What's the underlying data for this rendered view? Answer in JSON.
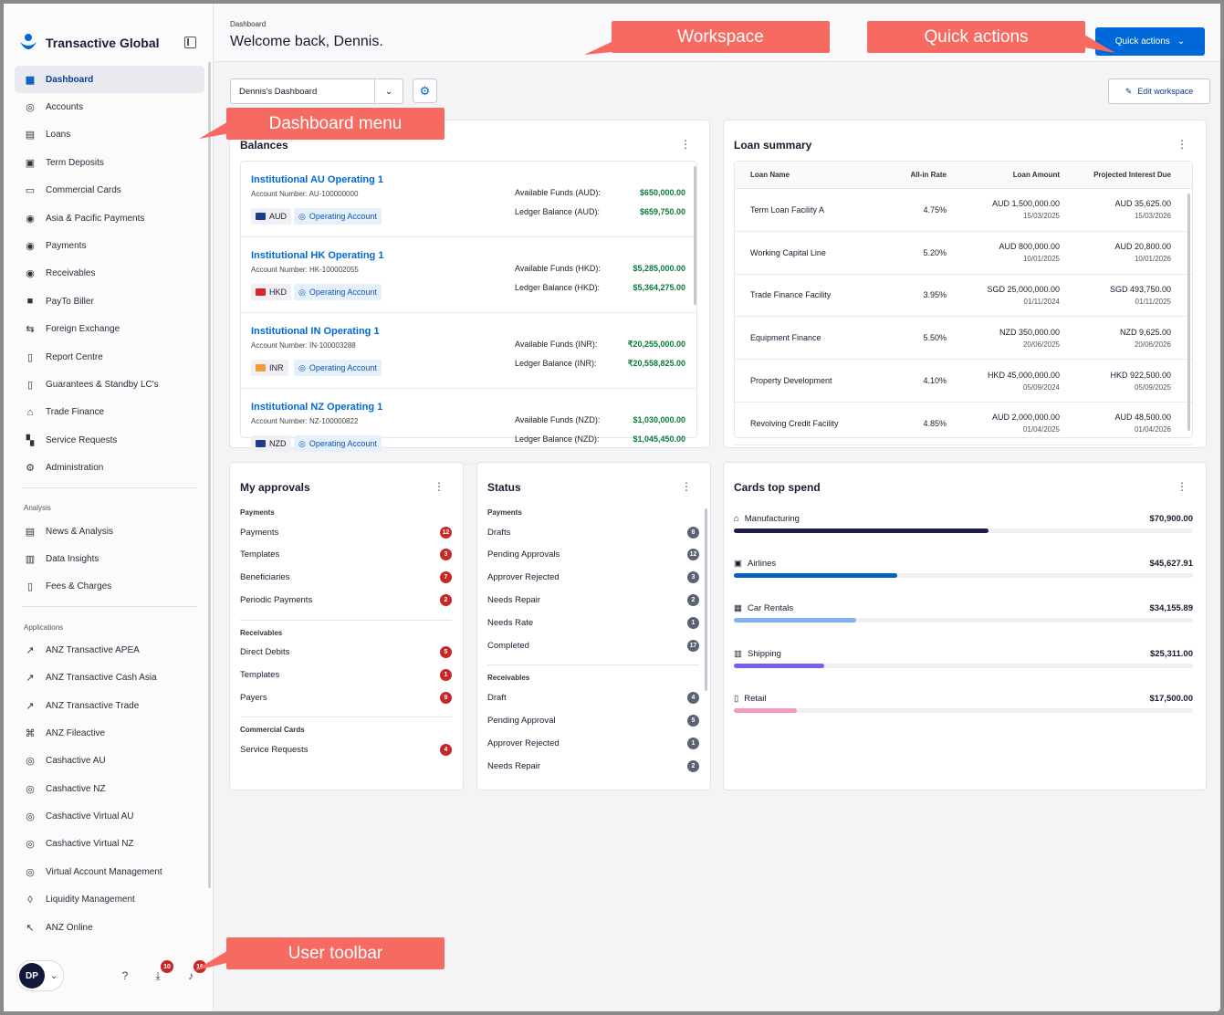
{
  "brand": {
    "name": "Transactive Global"
  },
  "sidebar": {
    "items": [
      {
        "label": "Dashboard",
        "icon": "dashboard-icon",
        "glyph": "▦",
        "active": true
      },
      {
        "label": "Accounts",
        "icon": "dollar-icon",
        "glyph": "◎"
      },
      {
        "label": "Loans",
        "icon": "loan-icon",
        "glyph": "▤"
      },
      {
        "label": "Term Deposits",
        "icon": "term-deposit-icon",
        "glyph": "▣"
      },
      {
        "label": "Commercial Cards",
        "icon": "card-icon",
        "glyph": "▭"
      },
      {
        "label": "Asia & Pacific Payments",
        "icon": "payments-icon",
        "glyph": "◉"
      },
      {
        "label": "Payments",
        "icon": "payments-icon",
        "glyph": "◉"
      },
      {
        "label": "Receivables",
        "icon": "receivables-icon",
        "glyph": "◉"
      },
      {
        "label": "PayTo Biller",
        "icon": "payto-icon",
        "glyph": "■"
      },
      {
        "label": "Foreign Exchange",
        "icon": "exchange-icon",
        "glyph": "⇆"
      },
      {
        "label": "Report Centre",
        "icon": "report-icon",
        "glyph": "▯"
      },
      {
        "label": "Guarantees & Standby LC's",
        "icon": "guarantee-icon",
        "glyph": "▯"
      },
      {
        "label": "Trade Finance",
        "icon": "trade-icon",
        "glyph": "⌂"
      },
      {
        "label": "Service Requests",
        "icon": "service-icon",
        "glyph": "▚"
      },
      {
        "label": "Administration",
        "icon": "admin-icon",
        "glyph": "⚙"
      }
    ],
    "analysis_label": "Analysis",
    "analysis": [
      {
        "label": "News & Analysis",
        "icon": "news-icon",
        "glyph": "▤"
      },
      {
        "label": "Data Insights",
        "icon": "chart-icon",
        "glyph": "▥"
      },
      {
        "label": "Fees & Charges",
        "icon": "fees-icon",
        "glyph": "▯"
      }
    ],
    "applications_label": "Applications",
    "applications": [
      {
        "label": "ANZ Transactive APEA",
        "icon": "link-icon",
        "glyph": "↗"
      },
      {
        "label": "ANZ Transactive Cash Asia",
        "icon": "link-icon",
        "glyph": "↗"
      },
      {
        "label": "ANZ Transactive Trade",
        "icon": "link-icon",
        "glyph": "↗"
      },
      {
        "label": "ANZ Fileactive",
        "icon": "network-icon",
        "glyph": "⌘"
      },
      {
        "label": "Cashactive AU",
        "icon": "cash-icon",
        "glyph": "◎"
      },
      {
        "label": "Cashactive NZ",
        "icon": "cash-icon",
        "glyph": "◎"
      },
      {
        "label": "Cashactive Virtual AU",
        "icon": "cash-icon",
        "glyph": "◎"
      },
      {
        "label": "Cashactive Virtual NZ",
        "icon": "cash-icon",
        "glyph": "◎"
      },
      {
        "label": "Virtual Account Management",
        "icon": "cash-icon",
        "glyph": "◎"
      },
      {
        "label": "Liquidity Management",
        "icon": "drop-icon",
        "glyph": "◊"
      },
      {
        "label": "ANZ Online",
        "icon": "cursor-icon",
        "glyph": "↖"
      }
    ]
  },
  "user": {
    "initials": "DP",
    "downloads_count": "10",
    "notifications_count": "16"
  },
  "header": {
    "breadcrumb": "Dashboard",
    "welcome": "Welcome back, Dennis.",
    "quick_actions": "Quick actions"
  },
  "workspace": {
    "selected": "Dennis's Dashboard",
    "edit_label": "Edit workspace"
  },
  "balances": {
    "title": "Balances",
    "accounts": [
      {
        "name": "Institutional AU Operating 1",
        "number": "Account Number: AU-100000000",
        "currency": "AUD",
        "type": "Operating Account",
        "avail_label": "Available Funds (AUD):",
        "avail": "$650,000.00",
        "ledger_label": "Ledger Balance (AUD):",
        "ledger": "$659,750.00",
        "flag": "#1d3b8f"
      },
      {
        "name": "Institutional HK Operating 1",
        "number": "Account Number: HK-100002055",
        "currency": "HKD",
        "type": "Operating Account",
        "avail_label": "Available Funds (HKD):",
        "avail": "$5,285,000.00",
        "ledger_label": "Ledger Balance (HKD):",
        "ledger": "$5,364,275.00",
        "flag": "#d62828"
      },
      {
        "name": "Institutional IN Operating 1",
        "number": "Account Number: IN-100003288",
        "currency": "INR",
        "type": "Operating Account",
        "avail_label": "Available Funds (INR):",
        "avail": "₹20,255,000.00",
        "ledger_label": "Ledger Balance (INR):",
        "ledger": "₹20,558,825.00",
        "flag": "#f29b38"
      },
      {
        "name": "Institutional NZ Operating 1",
        "number": "Account Number: NZ-100000822",
        "currency": "NZD",
        "type": "Operating Account",
        "avail_label": "Available Funds (NZD):",
        "avail": "$1,030,000.00",
        "ledger_label": "Ledger Balance (NZD):",
        "ledger": "$1,045,450.00",
        "flag": "#1d3b8f"
      }
    ]
  },
  "loans": {
    "title": "Loan summary",
    "columns": [
      "Loan Name",
      "All-in Rate",
      "Loan Amount",
      "Projected Interest Due"
    ],
    "rows": [
      {
        "name": "Term Loan Facility A",
        "rate": "4.75%",
        "amount": "AUD 1,500,000.00",
        "amount_date": "15/03/2025",
        "interest": "AUD 35,625.00",
        "interest_date": "15/03/2026"
      },
      {
        "name": "Working Capital Line",
        "rate": "5.20%",
        "amount": "AUD 800,000.00",
        "amount_date": "10/01/2025",
        "interest": "AUD 20,800.00",
        "interest_date": "10/01/2026"
      },
      {
        "name": "Trade Finance Facility",
        "rate": "3.95%",
        "amount": "SGD 25,000,000.00",
        "amount_date": "01/11/2024",
        "interest": "SGD 493,750.00",
        "interest_date": "01/11/2025"
      },
      {
        "name": "Equipment Finance",
        "rate": "5.50%",
        "amount": "NZD 350,000.00",
        "amount_date": "20/06/2025",
        "interest": "NZD 9,625.00",
        "interest_date": "20/06/2026"
      },
      {
        "name": "Property Development",
        "rate": "4.10%",
        "amount": "HKD 45,000,000.00",
        "amount_date": "05/09/2024",
        "interest": "HKD 922,500.00",
        "interest_date": "05/09/2025"
      },
      {
        "name": "Revolving Credit Facility",
        "rate": "4.85%",
        "amount": "AUD 2,000,000.00",
        "amount_date": "01/04/2025",
        "interest": "AUD 48,500.00",
        "interest_date": "01/04/2026"
      }
    ]
  },
  "approvals": {
    "title": "My approvals",
    "groups": [
      {
        "label": "Payments",
        "items": [
          {
            "label": "Payments",
            "count": "12"
          },
          {
            "label": "Templates",
            "count": "3"
          },
          {
            "label": "Beneficiaries",
            "count": "7"
          },
          {
            "label": "Periodic Payments",
            "count": "2"
          }
        ]
      },
      {
        "label": "Receivables",
        "items": [
          {
            "label": "Direct Debits",
            "count": "5"
          },
          {
            "label": "Templates",
            "count": "1"
          },
          {
            "label": "Payers",
            "count": "9"
          }
        ]
      },
      {
        "label": "Commercial Cards",
        "items": [
          {
            "label": "Service Requests",
            "count": "4"
          }
        ]
      }
    ]
  },
  "status": {
    "title": "Status",
    "groups": [
      {
        "label": "Payments",
        "items": [
          {
            "label": "Drafts",
            "count": "8"
          },
          {
            "label": "Pending Approvals",
            "count": "12"
          },
          {
            "label": "Approver Rejected",
            "count": "3"
          },
          {
            "label": "Needs Repair",
            "count": "2"
          },
          {
            "label": "Needs Rate",
            "count": "1"
          },
          {
            "label": "Completed",
            "count": "17"
          }
        ]
      },
      {
        "label": "Receivables",
        "items": [
          {
            "label": "Draft",
            "count": "4"
          },
          {
            "label": "Pending Approval",
            "count": "5"
          },
          {
            "label": "Approver Rejected",
            "count": "1"
          },
          {
            "label": "Needs Repair",
            "count": "2"
          }
        ]
      }
    ]
  },
  "spend": {
    "title": "Cards top spend",
    "items": [
      {
        "label": "Manufacturing",
        "amount": "$70,900.00",
        "value": 70900,
        "color": "#1b1d4a",
        "icon": "tag-icon",
        "glyph": "⌂"
      },
      {
        "label": "Airlines",
        "amount": "$45,627.91",
        "value": 45627.91,
        "color": "#0a5fc0",
        "icon": "airline-icon",
        "glyph": "▣"
      },
      {
        "label": "Car Rentals",
        "amount": "$34,155.89",
        "value": 34155.89,
        "color": "#7fb4f0",
        "icon": "car-icon",
        "glyph": "▦"
      },
      {
        "label": "Shipping",
        "amount": "$25,311.00",
        "value": 25311,
        "color": "#7b5cf0",
        "icon": "ship-icon",
        "glyph": "▥"
      },
      {
        "label": "Retail",
        "amount": "$17,500.00",
        "value": 17500,
        "color": "#f49ac0",
        "icon": "bag-icon",
        "glyph": "▯"
      }
    ],
    "max": 128000
  },
  "callouts": {
    "workspace": "Workspace",
    "quick_actions": "Quick actions",
    "dashboard_menu": "Dashboard menu",
    "user_toolbar": "User toolbar"
  }
}
